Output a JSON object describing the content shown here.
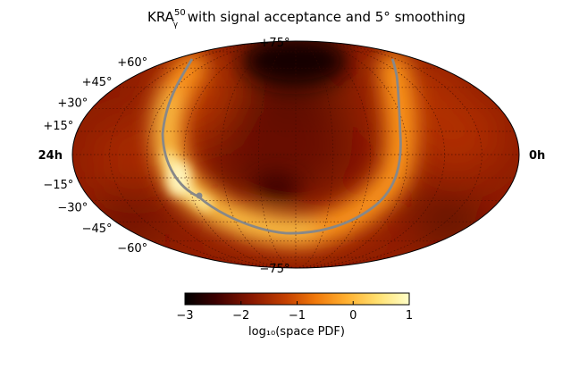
{
  "chart_data": {
    "type": "heatmap",
    "projection": "mollweide",
    "title_main": "KRA",
    "title_sup": "50",
    "title_sub": "γ",
    "title_rest": " with signal acceptance and 5° smoothing",
    "dec_ticks": [
      {
        "value": 75,
        "label": "+75°"
      },
      {
        "value": 60,
        "label": "+60°"
      },
      {
        "value": 45,
        "label": "+45°"
      },
      {
        "value": 30,
        "label": "+30°"
      },
      {
        "value": 15,
        "label": "+15°"
      },
      {
        "value": -15,
        "label": "−15°"
      },
      {
        "value": -30,
        "label": "−30°"
      },
      {
        "value": -45,
        "label": "−45°"
      },
      {
        "value": -60,
        "label": "−60°"
      },
      {
        "value": -75,
        "label": "−75°"
      }
    ],
    "ra_left_label": "24h",
    "ra_right_label": "0h",
    "colorbar": {
      "ticks": [
        {
          "value": -3,
          "label": "−3"
        },
        {
          "value": -2,
          "label": "−2"
        },
        {
          "value": -1,
          "label": "−1"
        },
        {
          "value": 0,
          "label": "0"
        },
        {
          "value": 1,
          "label": "1"
        }
      ],
      "range": [
        -3,
        1
      ],
      "label": "log₁₀(space PDF)",
      "colormap": [
        "#000000",
        "#3d0000",
        "#8a1800",
        "#c44000",
        "#f0780a",
        "#ffb030",
        "#ffe070",
        "#ffffc8"
      ]
    },
    "galactic_plane_color": "#888888",
    "galactic_center_marker": true,
    "grid": true
  }
}
